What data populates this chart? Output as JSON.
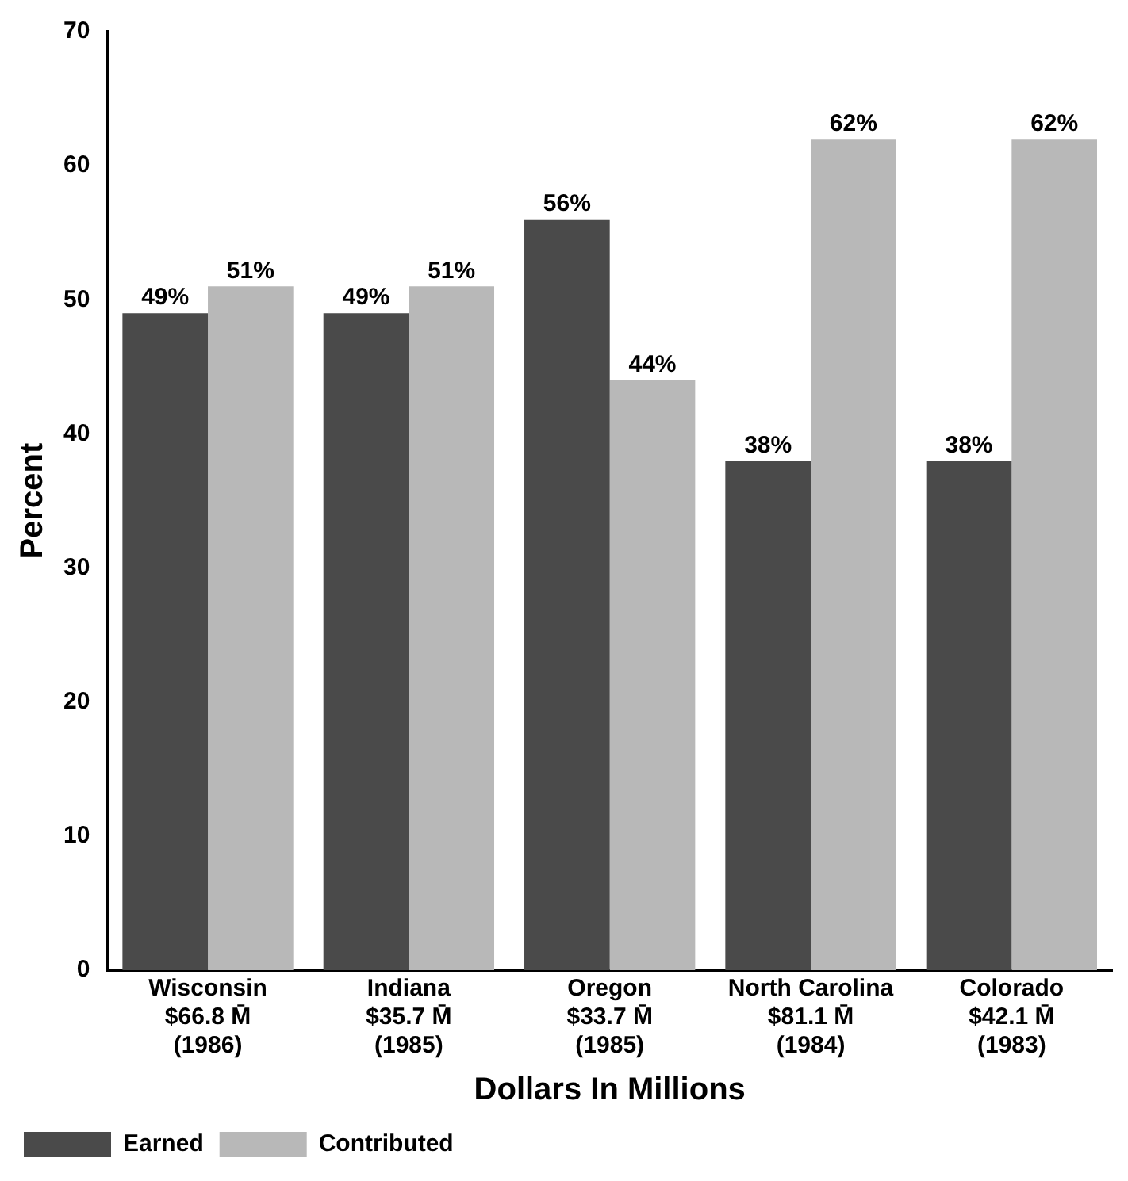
{
  "chart_data": {
    "type": "bar",
    "categories": [
      "Wisconsin\n$66.8 M̄\n(1986)",
      "Indiana\n$35.7 M̄\n(1985)",
      "Oregon\n$33.7 M̄\n(1985)",
      "North Carolina\n$81.1 M̄\n(1984)",
      "Colorado\n$42.1 M̄\n(1983)"
    ],
    "series": [
      {
        "name": "Earned",
        "color": "#4a4a4a",
        "values": [
          49,
          49,
          56,
          38,
          38
        ],
        "value_labels": [
          "49%",
          "49%",
          "56%",
          "38%",
          "38%"
        ]
      },
      {
        "name": "Contributed",
        "color": "#b8b8b8",
        "values": [
          51,
          51,
          44,
          62,
          62
        ],
        "value_labels": [
          "51%",
          "51%",
          "44%",
          "62%",
          "62%"
        ]
      }
    ],
    "xlabel": "Dollars In Millions",
    "ylabel": "Percent",
    "ylim": [
      0,
      70
    ],
    "yticks": [
      0,
      10,
      20,
      30,
      40,
      50,
      60,
      70
    ],
    "grid": false,
    "legend": "bottom left"
  }
}
